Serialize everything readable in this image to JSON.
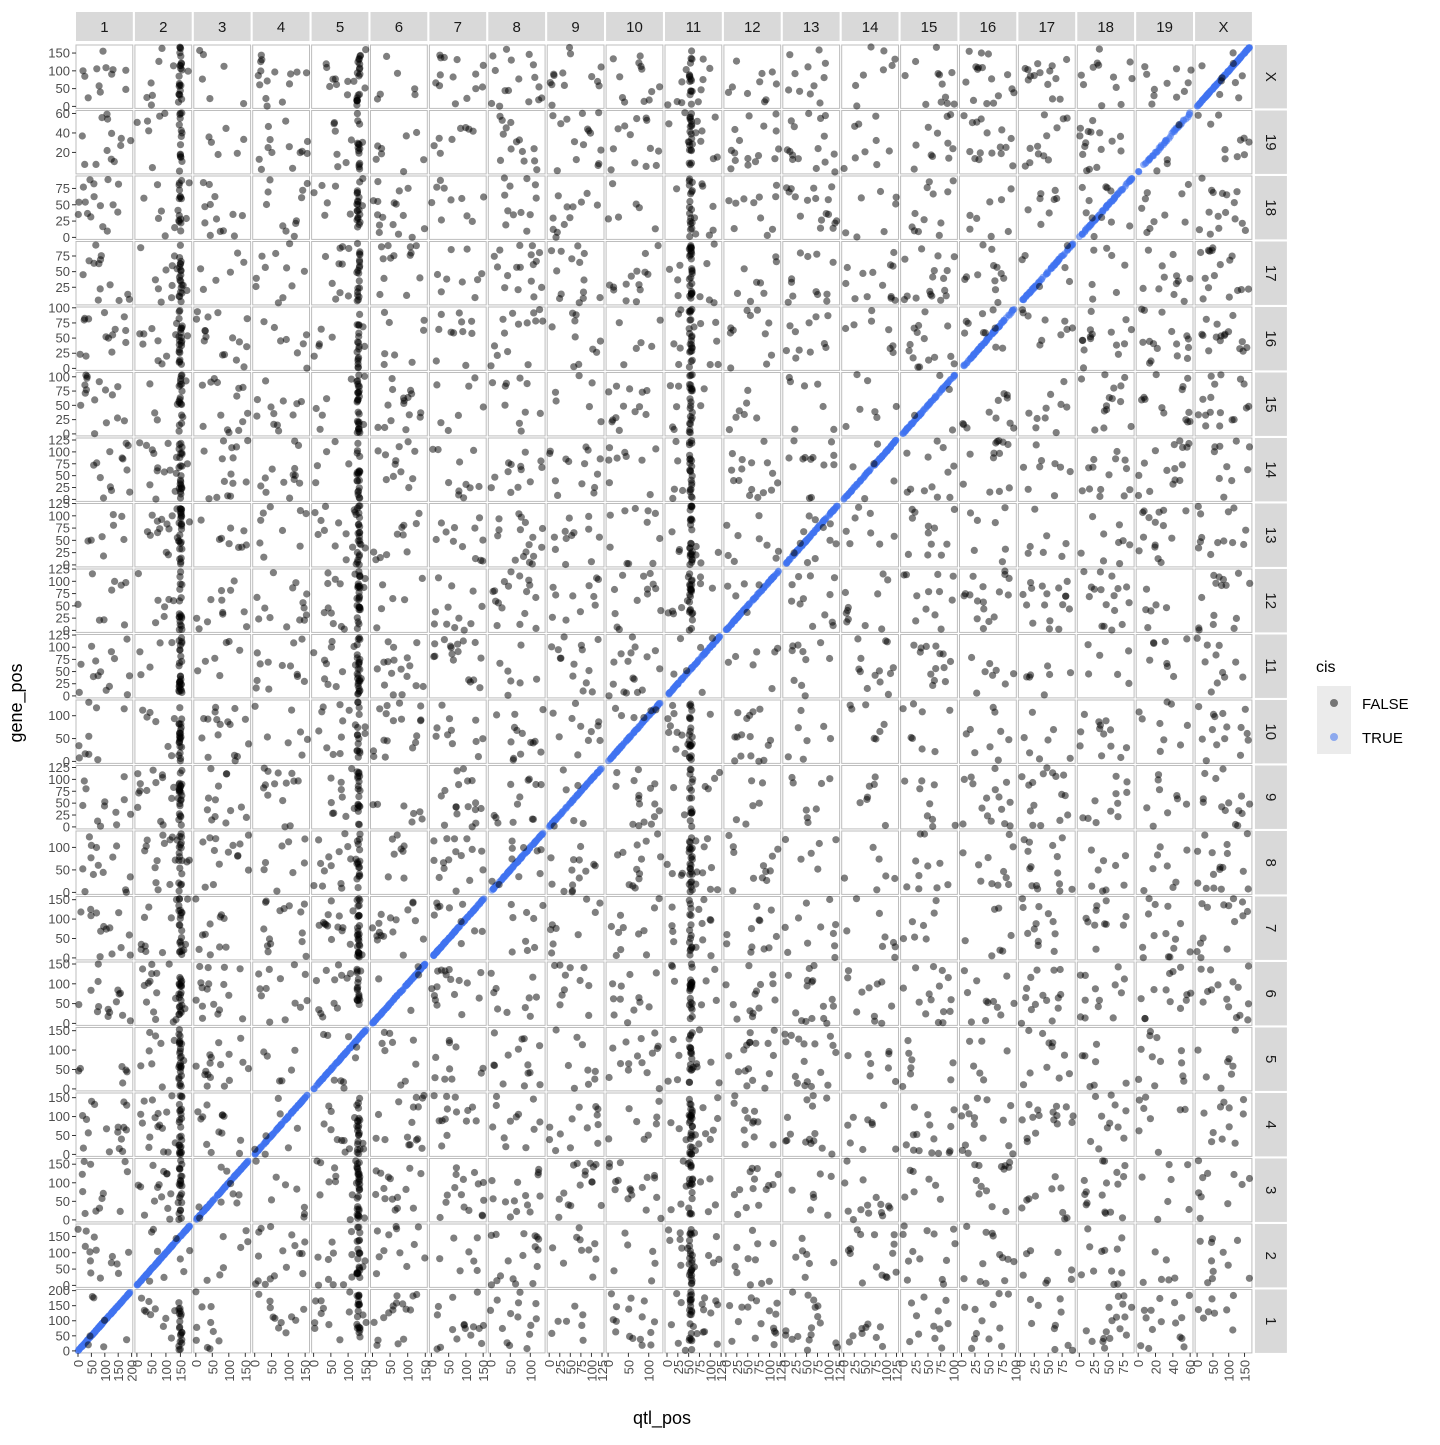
{
  "chart_data": {
    "type": "scatter",
    "title": "",
    "xlabel": "qtl_pos",
    "ylabel": "gene_pos",
    "facet_columns": [
      "1",
      "2",
      "3",
      "4",
      "5",
      "6",
      "7",
      "8",
      "9",
      "10",
      "11",
      "12",
      "13",
      "14",
      "15",
      "16",
      "17",
      "18",
      "19",
      "X"
    ],
    "facet_rows": [
      "X",
      "19",
      "18",
      "17",
      "16",
      "15",
      "14",
      "13",
      "12",
      "11",
      "10",
      "9",
      "8",
      "7",
      "6",
      "5",
      "4",
      "3",
      "2",
      "1"
    ],
    "chromosome_lengths": {
      "1": 197,
      "2": 182,
      "3": 160,
      "4": 157,
      "5": 153,
      "6": 150,
      "7": 153,
      "8": 132,
      "9": 125,
      "10": 130,
      "11": 122,
      "12": 121,
      "13": 121,
      "14": 125,
      "15": 104,
      "16": 98,
      "17": 95,
      "18": 91,
      "19": 61,
      "X": 167
    },
    "x_tick_labels": {
      "1": [
        "0",
        "50",
        "100",
        "150",
        "200"
      ],
      "2": [
        "0",
        "50",
        "100",
        "150"
      ],
      "3": [
        "0",
        "50",
        "100",
        "150"
      ],
      "4": [
        "0",
        "50",
        "100",
        "150"
      ],
      "5": [
        "0",
        "50",
        "100",
        "150"
      ],
      "6": [
        "0",
        "50",
        "100",
        "150"
      ],
      "7": [
        "0",
        "50",
        "100",
        "150"
      ],
      "8": [
        "0",
        "50",
        "100"
      ],
      "9": [
        "0",
        "25",
        "50",
        "75",
        "100",
        "125"
      ],
      "10": [
        "0",
        "50",
        "100"
      ],
      "11": [
        "0",
        "25",
        "50",
        "75",
        "100",
        "125"
      ],
      "12": [
        "0",
        "25",
        "50",
        "75",
        "100",
        "125"
      ],
      "13": [
        "0",
        "25",
        "50",
        "75",
        "100",
        "125"
      ],
      "14": [
        "0",
        "25",
        "50",
        "75",
        "100",
        "125"
      ],
      "15": [
        "0",
        "25",
        "50",
        "75",
        "100"
      ],
      "16": [
        "0",
        "25",
        "50",
        "75",
        "100"
      ],
      "17": [
        "0",
        "25",
        "50",
        "75"
      ],
      "18": [
        "0",
        "25",
        "50",
        "75"
      ],
      "19": [
        "0",
        "20",
        "40",
        "60"
      ],
      "X": [
        "0",
        "50",
        "100",
        "150"
      ]
    },
    "y_tick_labels": {
      "X": [
        "0",
        "50",
        "100",
        "150"
      ],
      "19": [
        "20",
        "40",
        "60"
      ],
      "18": [
        "0",
        "25",
        "50",
        "75"
      ],
      "17": [
        "25",
        "50",
        "75"
      ],
      "16": [
        "0",
        "25",
        "50",
        "75",
        "100"
      ],
      "15": [
        "0",
        "25",
        "50",
        "75",
        "100"
      ],
      "14": [
        "0",
        "25",
        "50",
        "75",
        "100",
        "125"
      ],
      "13": [
        "0",
        "25",
        "50",
        "75",
        "100",
        "125"
      ],
      "12": [
        "0",
        "25",
        "50",
        "75",
        "100",
        "125"
      ],
      "11": [
        "0",
        "25",
        "50",
        "75",
        "100",
        "125"
      ],
      "10": [
        "0",
        "50",
        "100"
      ],
      "9": [
        "0",
        "25",
        "50",
        "75",
        "100",
        "125"
      ],
      "8": [
        "0",
        "50",
        "100"
      ],
      "7": [
        "0",
        "50",
        "100",
        "150"
      ],
      "6": [
        "0",
        "50",
        "100",
        "150"
      ],
      "5": [
        "0",
        "50",
        "100",
        "150"
      ],
      "4": [
        "0",
        "50",
        "100",
        "150"
      ],
      "3": [
        "0",
        "50",
        "100",
        "150"
      ],
      "2": [
        "0",
        "50",
        "100",
        "150"
      ],
      "1": [
        "0",
        "50",
        "100",
        "150",
        "200"
      ]
    },
    "series": [
      {
        "name": "FALSE",
        "color": "#000000",
        "description_of_points": "trans eQTL, scattered across all facets with vertical dense bands at qtl chr2 ~150, chr5 ~130, chr11 ~55"
      },
      {
        "name": "TRUE",
        "color": "#3f73f0",
        "description_of_points": "cis eQTL, lie on the diagonal where qtl chromosome equals gene chromosome and qtl_pos equals gene_pos"
      }
    ],
    "hotspots": [
      {
        "qtl_chr": "2",
        "qtl_pos": 150
      },
      {
        "qtl_chr": "5",
        "qtl_pos": 130
      },
      {
        "qtl_chr": "11",
        "qtl_pos": 55
      }
    ],
    "legend": {
      "title": "cis",
      "entries": [
        "FALSE",
        "TRUE"
      ],
      "placement": "right"
    },
    "grid": true
  }
}
